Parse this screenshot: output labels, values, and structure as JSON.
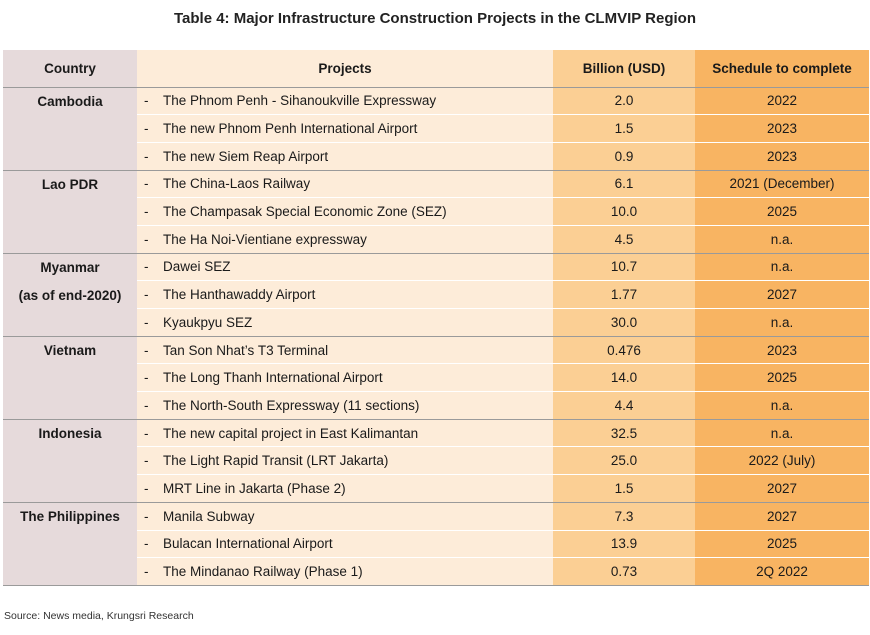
{
  "title": "Table 4: Major Infrastructure Construction Projects in the CLMVIP Region",
  "headers": {
    "country": "Country",
    "projects": "Projects",
    "billion": "Billion (USD)",
    "schedule": "Schedule to complete"
  },
  "bullet": "-",
  "groups": [
    {
      "country": "Cambodia",
      "country_sub": "",
      "rows": [
        {
          "project": "The Phnom Penh - Sihanoukville Expressway",
          "billion": "2.0",
          "schedule": "2022"
        },
        {
          "project": "The new Phnom Penh International Airport",
          "billion": "1.5",
          "schedule": "2023"
        },
        {
          "project": "The new Siem Reap Airport",
          "billion": "0.9",
          "schedule": "2023"
        }
      ]
    },
    {
      "country": "Lao PDR",
      "country_sub": "",
      "rows": [
        {
          "project": "The China-Laos Railway",
          "billion": "6.1",
          "schedule": "2021 (December)"
        },
        {
          "project": "The Champasak Special Economic Zone (SEZ)",
          "billion": "10.0",
          "schedule": "2025"
        },
        {
          "project": "The Ha Noi-Vientiane expressway",
          "billion": "4.5",
          "schedule": "n.a."
        }
      ]
    },
    {
      "country": "Myanmar",
      "country_sub": "(as of end-2020)",
      "rows": [
        {
          "project": "Dawei SEZ",
          "billion": "10.7",
          "schedule": "n.a."
        },
        {
          "project": "The Hanthawaddy Airport",
          "billion": "1.77",
          "schedule": "2027"
        },
        {
          "project": "Kyaukpyu SEZ",
          "billion": "30.0",
          "schedule": "n.a."
        }
      ]
    },
    {
      "country": "Vietnam",
      "country_sub": "",
      "rows": [
        {
          "project": "Tan Son Nhat’s T3 Terminal",
          "billion": "0.476",
          "schedule": "2023"
        },
        {
          "project": "The Long Thanh International Airport",
          "billion": "14.0",
          "schedule": "2025"
        },
        {
          "project": "The North-South Expressway (11 sections)",
          "billion": "4.4",
          "schedule": "n.a."
        }
      ]
    },
    {
      "country": "Indonesia",
      "country_sub": "",
      "rows": [
        {
          "project": "The new capital project in East Kalimantan",
          "billion": "32.5",
          "schedule": "n.a."
        },
        {
          "project": "The Light Rapid Transit (LRT Jakarta)",
          "billion": "25.0",
          "schedule": "2022 (July)"
        },
        {
          "project": "MRT Line in Jakarta (Phase 2)",
          "billion": "1.5",
          "schedule": "2027"
        }
      ]
    },
    {
      "country": "The Philippines",
      "country_sub": "",
      "rows": [
        {
          "project": "Manila Subway",
          "billion": "7.3",
          "schedule": "2027"
        },
        {
          "project": "Bulacan International Airport",
          "billion": "13.9",
          "schedule": "2025"
        },
        {
          "project": "The Mindanao Railway (Phase 1)",
          "billion": "0.73",
          "schedule": "2Q 2022"
        }
      ]
    }
  ],
  "source": "Source: News media, Krungsri Research"
}
